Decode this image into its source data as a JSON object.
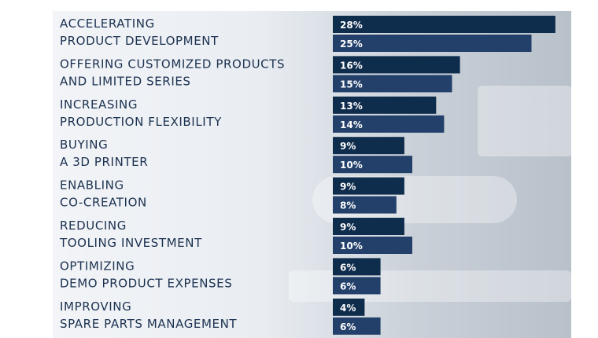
{
  "colors": {
    "series_a": "#0e2c4c",
    "series_b": "#22406a",
    "text": "#1b3150"
  },
  "chart_data": {
    "type": "bar",
    "orientation": "horizontal",
    "title": "",
    "xlabel": "",
    "ylabel": "",
    "xlim": [
      0,
      28
    ],
    "grid": false,
    "categories": [
      [
        "ACCELERATING",
        "PRODUCT DEVELOPMENT"
      ],
      [
        "OFFERING CUSTOMIZED PRODUCTS",
        "AND LIMITED SERIES"
      ],
      [
        "INCREASING",
        "PRODUCTION FLEXIBILITY"
      ],
      [
        "BUYING",
        "A 3D PRINTER"
      ],
      [
        "ENABLING",
        "CO-CREATION"
      ],
      [
        "REDUCING",
        "TOOLING INVESTMENT"
      ],
      [
        "OPTIMIZING",
        "DEMO PRODUCT EXPENSES"
      ],
      [
        "IMPROVING",
        "SPARE PARTS MANAGEMENT"
      ]
    ],
    "series": [
      {
        "values": [
          28,
          16,
          13,
          9,
          9,
          9,
          6,
          4
        ],
        "labels": [
          "28%",
          "16%",
          "13%",
          "9%",
          "9%",
          "9%",
          "6%",
          "4%"
        ]
      },
      {
        "values": [
          25,
          15,
          14,
          10,
          8,
          10,
          6,
          6
        ],
        "labels": [
          "25%",
          "15%",
          "14%",
          "10%",
          "8%",
          "10%",
          "6%",
          "6%"
        ]
      }
    ]
  }
}
